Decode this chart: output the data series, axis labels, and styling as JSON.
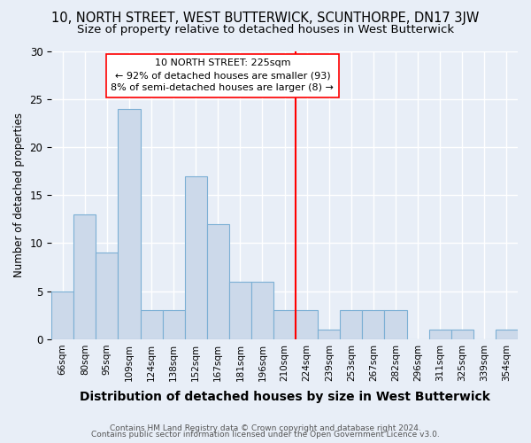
{
  "title": "10, NORTH STREET, WEST BUTTERWICK, SCUNTHORPE, DN17 3JW",
  "subtitle": "Size of property relative to detached houses in West Butterwick",
  "xlabel": "Distribution of detached houses by size in West Butterwick",
  "ylabel": "Number of detached properties",
  "categories": [
    "66sqm",
    "80sqm",
    "95sqm",
    "109sqm",
    "124sqm",
    "138sqm",
    "152sqm",
    "167sqm",
    "181sqm",
    "196sqm",
    "210sqm",
    "224sqm",
    "239sqm",
    "253sqm",
    "267sqm",
    "282sqm",
    "296sqm",
    "311sqm",
    "325sqm",
    "339sqm",
    "354sqm"
  ],
  "values": [
    5,
    13,
    9,
    24,
    3,
    3,
    17,
    12,
    6,
    6,
    3,
    3,
    1,
    3,
    3,
    3,
    0,
    1,
    1,
    0,
    1
  ],
  "bar_color": "#ccd9ea",
  "bar_edge_color": "#7bafd4",
  "annotation_title": "10 NORTH STREET: 225sqm",
  "annotation_line1": "← 92% of detached houses are smaller (93)",
  "annotation_line2": "8% of semi-detached houses are larger (8) →",
  "footer_line1": "Contains HM Land Registry data © Crown copyright and database right 2024.",
  "footer_line2": "Contains public sector information licensed under the Open Government Licence v3.0.",
  "bg_color": "#e8eef7",
  "ylim": [
    0,
    30
  ],
  "title_fontsize": 10.5,
  "subtitle_fontsize": 9.5,
  "xlabel_fontsize": 10,
  "ylabel_fontsize": 8.5
}
